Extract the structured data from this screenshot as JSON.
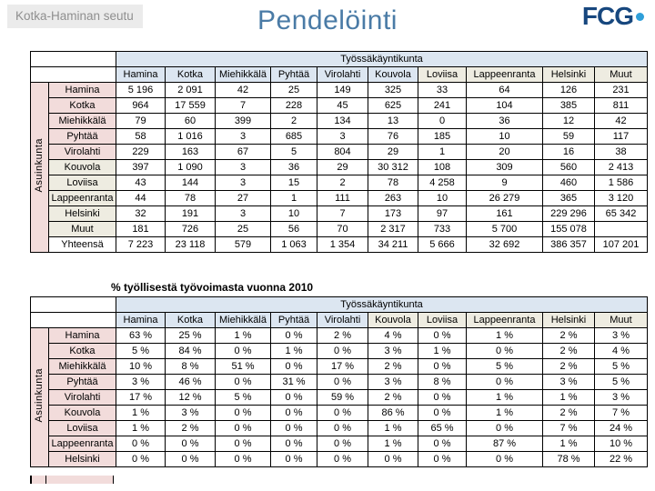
{
  "header": {
    "region_label": "Kotka-Haminan seutu",
    "title": "Pendelöinti",
    "logo_text": "FCG"
  },
  "colors": {
    "title_blue": "#4a7ba6",
    "logo_navy": "#17477e",
    "logo_dot_blue": "#2f9fd9",
    "header_blue": "#dce6f1",
    "highlight_pink": "#f2dcdb",
    "highlight_beige": "#eeece1",
    "region_label_gray": "#ebebeb"
  },
  "table1": {
    "group_header": "Työssäkäyntikunta",
    "side_label": "Asuinkunta",
    "thick_bottom": true,
    "columns": [
      "Hamina",
      "Kotka",
      "Miehikkälä",
      "Pyhtää",
      "Virolahti",
      "Kouvola",
      "Loviisa",
      "Lappeenranta",
      "Helsinki",
      "Muut"
    ],
    "column_styles": [
      "blue",
      "blue",
      "blue",
      "blue",
      "blue",
      "blue",
      "beige",
      "beige",
      "beige",
      "beige"
    ],
    "rows": [
      {
        "label": "Hamina",
        "label_style": "pink",
        "values": [
          "5 196",
          "2 091",
          "42",
          "25",
          "149",
          "325",
          "33",
          "64",
          "126",
          "231"
        ]
      },
      {
        "label": "Kotka",
        "label_style": "pink",
        "values": [
          "964",
          "17 559",
          "7",
          "228",
          "45",
          "625",
          "241",
          "104",
          "385",
          "811"
        ]
      },
      {
        "label": "Miehikkälä",
        "label_style": "pink",
        "values": [
          "79",
          "60",
          "399",
          "2",
          "134",
          "13",
          "0",
          "36",
          "12",
          "42"
        ]
      },
      {
        "label": "Pyhtää",
        "label_style": "pink",
        "values": [
          "58",
          "1 016",
          "3",
          "685",
          "3",
          "76",
          "185",
          "10",
          "59",
          "117"
        ]
      },
      {
        "label": "Virolahti",
        "label_style": "pink",
        "values": [
          "229",
          "163",
          "67",
          "5",
          "804",
          "29",
          "1",
          "20",
          "16",
          "38"
        ]
      },
      {
        "label": "Kouvola",
        "label_style": "beige",
        "values": [
          "397",
          "1 090",
          "3",
          "36",
          "29",
          "30 312",
          "108",
          "309",
          "560",
          "2 413"
        ]
      },
      {
        "label": "Loviisa",
        "label_style": "beige",
        "values": [
          "43",
          "144",
          "3",
          "15",
          "2",
          "78",
          "4 258",
          "9",
          "460",
          "1 586"
        ]
      },
      {
        "label": "Lappeenranta",
        "label_style": "beige",
        "values": [
          "44",
          "78",
          "27",
          "1",
          "111",
          "263",
          "10",
          "26 279",
          "365",
          "3 120"
        ]
      },
      {
        "label": "Helsinki",
        "label_style": "beige",
        "values": [
          "32",
          "191",
          "3",
          "10",
          "7",
          "173",
          "97",
          "161",
          "229 296",
          "65 342"
        ]
      },
      {
        "label": "Muut",
        "label_style": "beige",
        "values": [
          "181",
          "726",
          "25",
          "56",
          "70",
          "2 317",
          "733",
          "5 700",
          "155 078",
          ""
        ]
      },
      {
        "label": "Yhteensä",
        "label_style": "white",
        "values": [
          "7 223",
          "23 118",
          "579",
          "1 063",
          "1 354",
          "34 211",
          "5 666",
          "32 692",
          "386 357",
          "107 201"
        ]
      }
    ]
  },
  "table2": {
    "title": "% työllisestä työvoimasta vuonna 2010",
    "group_header": "Työssäkäyntikunta",
    "side_label": "Asuinkunta",
    "thick_bottom": false,
    "columns": [
      "Hamina",
      "Kotka",
      "Miehikkälä",
      "Pyhtää",
      "Virolahti",
      "Kouvola",
      "Loviisa",
      "Lappeenranta",
      "Helsinki",
      "Muut"
    ],
    "column_styles": [
      "blue",
      "blue",
      "blue",
      "blue",
      "blue",
      "beige",
      "beige",
      "beige",
      "beige",
      "beige"
    ],
    "rows": [
      {
        "label": "Hamina",
        "label_style": "pink",
        "values": [
          "63 %",
          "25 %",
          "1 %",
          "0 %",
          "2 %",
          "4 %",
          "0 %",
          "1 %",
          "2 %",
          "3 %"
        ]
      },
      {
        "label": "Kotka",
        "label_style": "pink",
        "values": [
          "5 %",
          "84 %",
          "0 %",
          "1 %",
          "0 %",
          "3 %",
          "1 %",
          "0 %",
          "2 %",
          "4 %"
        ]
      },
      {
        "label": "Miehikkälä",
        "label_style": "pink",
        "values": [
          "10 %",
          "8 %",
          "51 %",
          "0 %",
          "17 %",
          "2 %",
          "0 %",
          "5 %",
          "2 %",
          "5 %"
        ]
      },
      {
        "label": "Pyhtää",
        "label_style": "pink",
        "values": [
          "3 %",
          "46 %",
          "0 %",
          "31 %",
          "0 %",
          "3 %",
          "8 %",
          "0 %",
          "3 %",
          "5 %"
        ]
      },
      {
        "label": "Virolahti",
        "label_style": "pink",
        "values": [
          "17 %",
          "12 %",
          "5 %",
          "0 %",
          "59 %",
          "2 %",
          "0 %",
          "1 %",
          "1 %",
          "3 %"
        ]
      },
      {
        "label": "Kouvola",
        "label_style": "pink",
        "values": [
          "1 %",
          "3 %",
          "0 %",
          "0 %",
          "0 %",
          "86 %",
          "0 %",
          "1 %",
          "2 %",
          "7 %"
        ]
      },
      {
        "label": "Loviisa",
        "label_style": "pink",
        "values": [
          "1 %",
          "2 %",
          "0 %",
          "0 %",
          "0 %",
          "1 %",
          "65 %",
          "0 %",
          "7 %",
          "24 %"
        ]
      },
      {
        "label": "Lappeenranta",
        "label_style": "pink",
        "values": [
          "0 %",
          "0 %",
          "0 %",
          "0 %",
          "0 %",
          "1 %",
          "0 %",
          "87 %",
          "1 %",
          "10 %"
        ]
      },
      {
        "label": "Helsinki",
        "label_style": "pink",
        "values": [
          "0 %",
          "0 %",
          "0 %",
          "0 %",
          "0 %",
          "0 %",
          "0 %",
          "0 %",
          "78 %",
          "22 %"
        ]
      }
    ]
  }
}
